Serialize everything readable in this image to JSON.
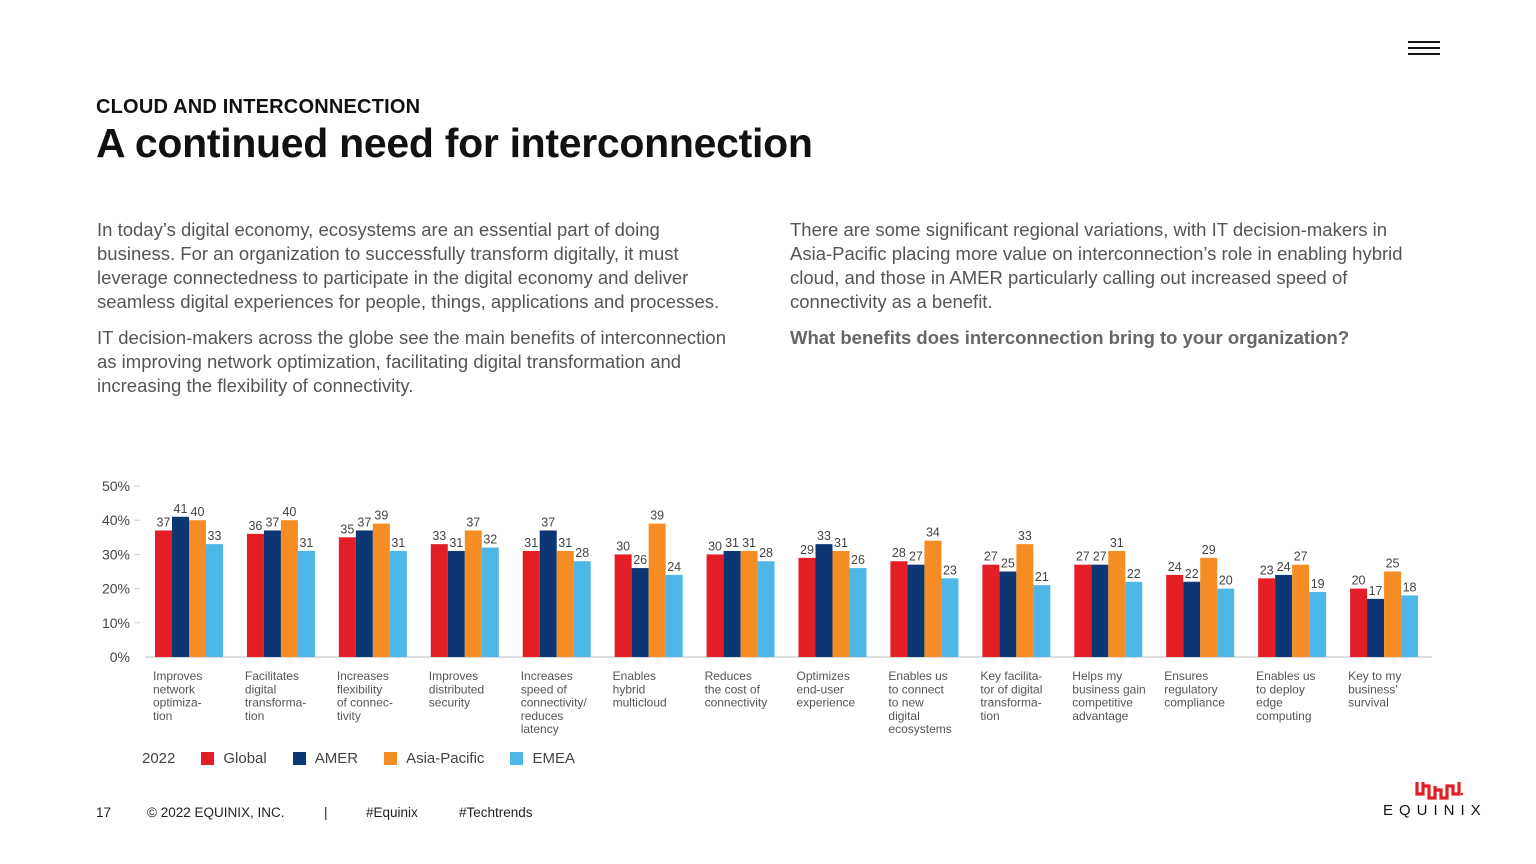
{
  "header": {
    "section_label": "CLOUD AND INTERCONNECTION",
    "title": "A continued need for interconnection"
  },
  "intro": {
    "left_p1": "In today’s digital economy, ecosystems are an essential part of doing business. For an organization to successfully transform digitally, it must leverage connectedness to participate in the digital economy and deliver seamless digital experiences for people, things, applications and processes.",
    "left_p2": "IT decision-makers across the globe see the main benefits of interconnection as improving network optimization, facilitating digital transformation and increasing the flexibility of connectivity.",
    "right_p1": "There are some significant regional variations, with IT decision-makers in Asia-Pacific placing more value on interconnection’s role in enabling hybrid cloud, and those in AMER particularly calling out increased speed of connectivity as a benefit.",
    "question": "What benefits does interconnection bring to your organization?"
  },
  "chart_data": {
    "type": "bar",
    "title": "What benefits does interconnection bring to your organization?",
    "ylim": [
      0,
      50
    ],
    "yticks": [
      "0%",
      "10%",
      "20%",
      "30%",
      "40%",
      "50%"
    ],
    "categories": [
      [
        "Improves",
        "network",
        "optimiza-",
        "tion"
      ],
      [
        "Facilitates",
        "digital",
        "transforma-",
        "tion"
      ],
      [
        "Increases",
        "flexibility",
        "of connec-",
        "tivity"
      ],
      [
        "Improves",
        "distributed",
        "security"
      ],
      [
        "Increases",
        "speed of",
        "connectivity/",
        "reduces",
        "latency"
      ],
      [
        "Enables",
        "hybrid",
        "multicloud"
      ],
      [
        "Reduces",
        "the cost of",
        "connectivity"
      ],
      [
        "Optimizes",
        "end-user",
        "experience"
      ],
      [
        "Enables us",
        "to connect",
        "to new",
        "digital",
        "ecosystems"
      ],
      [
        "Key facilita-",
        "tor of digital",
        "transforma-",
        "tion"
      ],
      [
        "Helps my",
        "business gain",
        "competitive",
        "advantage"
      ],
      [
        "Ensures",
        "regulatory",
        "compliance"
      ],
      [
        "Enables us",
        "to deploy",
        "edge",
        "computing"
      ],
      [
        "Key to my",
        "business'",
        "survival"
      ]
    ],
    "series": [
      {
        "name": "Global",
        "color": "#e31e26",
        "values": [
          37,
          36,
          35,
          33,
          31,
          30,
          30,
          29,
          28,
          27,
          27,
          24,
          23,
          20
        ]
      },
      {
        "name": "AMER",
        "color": "#0c3674",
        "values": [
          41,
          37,
          37,
          31,
          37,
          26,
          31,
          33,
          27,
          25,
          27,
          22,
          24,
          17
        ]
      },
      {
        "name": "Asia-Pacific",
        "color": "#f68d24",
        "values": [
          40,
          40,
          39,
          37,
          31,
          39,
          31,
          31,
          34,
          33,
          31,
          29,
          27,
          25
        ]
      },
      {
        "name": "EMEA",
        "color": "#4db8e8",
        "values": [
          33,
          31,
          31,
          32,
          28,
          24,
          28,
          26,
          23,
          21,
          22,
          20,
          19,
          18
        ]
      }
    ],
    "legend_year": "2022"
  },
  "footer": {
    "page_number": "17",
    "copyright": "© 2022 EQUINIX, INC.",
    "separator": "|",
    "hashtag1": "#Equinix",
    "hashtag2": "#Techtrends"
  },
  "brand": {
    "logo_text": "EQUINIX",
    "logo_color": "#e31e26"
  }
}
